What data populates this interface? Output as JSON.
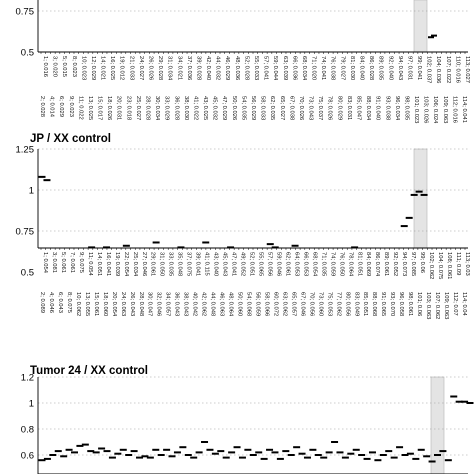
{
  "chart_data": [
    {
      "type": "scatter",
      "panel": "top",
      "title": "",
      "ylim": [
        0.5,
        0.9
      ],
      "yticks": [
        "0.75",
        "0.5"
      ],
      "xtick_labels_upper": [
        "1; 0.016",
        "3; 0.020",
        "5; 0.015",
        "8; 0.023",
        "10; 0.023",
        "12; 0.029",
        "14; 0.021",
        "16; 0.025",
        "19; 0.012",
        "21; 0.033",
        "24; 0.027",
        "26; 0.026",
        "29; 0.028",
        "31; 0.034",
        "34; 0.021",
        "37; 0.036",
        "39; 0.028",
        "42; 0.040",
        "44; 0.032",
        "46; 0.029",
        "48; 0.036",
        "52; 0.028",
        "55; 0.033",
        "57; 0.041",
        "59; 0.044",
        "63; 0.039",
        "66; 0.036",
        "68; 0.034",
        "71; 0.020",
        "74; 0.041",
        "76; 0.038",
        "79; 0.027",
        "81; 0.030",
        "84; 0.040",
        "86; 0.028",
        "89; 0.035",
        "92; 0.040",
        "94; 0.043",
        "97; 0.031",
        "99; 0.041",
        "102; 0.037",
        "104; 0.036",
        "107; 0.022",
        "110; 0.016",
        "113; 0.027"
      ],
      "xtick_labels_lower": [
        "2; 0.028",
        "4; 0.014",
        "6; 0.029",
        "9; 0.023",
        "11; 0.022",
        "13; 0.025",
        "15; 0.017",
        "18; 0.026",
        "20; 0.031",
        "23; 0.018",
        "25; 0.027",
        "28; 0.028",
        "30; 0.034",
        "33; 0.029",
        "36; 0.028",
        "38; 0.030",
        "41; 0.022",
        "43; 0.025",
        "45; 0.032",
        "47; 0.029",
        "50; 0.026",
        "54; 0.035",
        "56; 0.029",
        "58; 0.033",
        "62; 0.035",
        "65; 0.027",
        "67; 0.038",
        "70; 0.026",
        "73; 0.043",
        "75; 0.037",
        "78; 0.026",
        "80; 0.029",
        "83; 0.031",
        "85; 0.047",
        "88; 0.034",
        "91; 0.040",
        "93; 0.038",
        "96; 0.034",
        "98; 0.035",
        "101; 0.023",
        "103; 0.026",
        "106; 0.024",
        "109; 0.063",
        "112; 0.016",
        "114; 0.041"
      ],
      "series": [
        {
          "values": [
            0.59,
            0.6
          ]
        }
      ]
    },
    {
      "type": "scatter",
      "panel": "middle",
      "title": "JP / XX control",
      "ylim": [
        0.5,
        1.25
      ],
      "yticks": [
        "1.25",
        "1",
        "0.75",
        "0.5"
      ],
      "xtick_labels_upper": [
        "1; 0.054",
        "3; 0.081",
        "5; 0.061",
        "7; 0.061",
        "9; 0.075",
        "11; 0.054",
        "14; 0.051",
        "16; 0.041",
        "19; 0.039",
        "22; 0.054",
        "25; 0.034",
        "27; 0.046",
        "29; 0.061",
        "31; 0.050",
        "33; 0.035",
        "35; 0.048",
        "37; 0.075",
        "39; 0.041",
        "41; 0.115",
        "43; 0.040",
        "45; 0.043",
        "47; 0.041",
        "49; 0.052",
        "52; 0.051",
        "55; 0.065",
        "57; 0.056",
        "59; 0.046",
        "62; 0.061",
        "64; 0.053",
        "66; 0.053",
        "68; 0.054",
        "71; 0.035",
        "74; 0.059",
        "76; 0.050",
        "78; 0.064",
        "81; 0.051",
        "84; 0.069",
        "86; 0.074",
        "89; 0.061",
        "92; 0.052",
        "94; 0.073",
        "97; 0.085",
        "99; 0.06",
        "102; 0.062",
        "104; 0.075",
        "108; 0.061",
        "111; 0.09",
        "113; 0.03"
      ],
      "xtick_labels_lower": [
        "2; 0.089",
        "4; 0.046",
        "6; 0.043",
        "8; 0.075",
        "10; 0.062",
        "13; 0.055",
        "15; 0.061",
        "18; 0.060",
        "20; 0.054",
        "24; 0.063",
        "26; 0.043",
        "28; 0.048",
        "30; 0.047",
        "32; 0.046",
        "34; 0.057",
        "36; 0.043",
        "38; 0.043",
        "40; 0.042",
        "42; 0.062",
        "44; 0.048",
        "46; 0.063",
        "48; 0.064",
        "50; 0.060",
        "54; 0.068",
        "56; 0.059",
        "58; 0.066",
        "60; 0.072",
        "63; 0.062",
        "65; 0.057",
        "67; 0.046",
        "70; 0.056",
        "73; 0.060",
        "75; 0.053",
        "77; 0.062",
        "80; 0.056",
        "83; 0.049",
        "85; 0.051",
        "88; 0.068",
        "91; 0.065",
        "93; 0.070",
        "96; 0.058",
        "98; 0.061",
        "101; 0.06",
        "103; 0.063",
        "107; 0.062",
        "109; 0.063",
        "112; 0.07",
        "114; 0.04"
      ],
      "series": [
        {
          "values": [
            1.08,
            1.06,
            0.62,
            0.52,
            0.61,
            0.64,
            0.58,
            0.51,
            0.63,
            0.6,
            0.65,
            0.62,
            0.6,
            0.65,
            0.6,
            0.61,
            0.64,
            0.66,
            0.59,
            0.63,
            0.56,
            0.62,
            0.6,
            0.68,
            0.59,
            0.64,
            0.63,
            0.6,
            0.65,
            0.58,
            0.64,
            0.6,
            0.58,
            0.68,
            0.62,
            0.61,
            0.64,
            0.64,
            0.65,
            0.6,
            0.63,
            0.64,
            0.56,
            0.6,
            0.57,
            0.62,
            0.67,
            0.65,
            0.58,
            0.64,
            0.6,
            0.66,
            0.59,
            0.56,
            0.62,
            0.54,
            0.57,
            0.54,
            0.6,
            0.52,
            0.56,
            0.63,
            0.52,
            0.65,
            0.59,
            0.55,
            0.61,
            0.53,
            0.51,
            0.58,
            0.6,
            0.5,
            0.51,
            0.78,
            0.83,
            0.97,
            0.99,
            0.97,
            0.58,
            0.57
          ]
        }
      ]
    },
    {
      "type": "scatter",
      "panel": "bottom",
      "title": "Tumor 24 / XX control",
      "ylim": [
        0.5,
        1.2
      ],
      "yticks": [
        "1.2",
        "1",
        "0.8",
        "0.6"
      ],
      "series": [
        {
          "values": [
            0.56,
            0.57,
            0.6,
            0.63,
            0.59,
            0.64,
            0.62,
            0.67,
            0.68,
            0.63,
            0.62,
            0.65,
            0.63,
            0.58,
            0.61,
            0.64,
            0.6,
            0.63,
            0.58,
            0.59,
            0.58,
            0.64,
            0.6,
            0.64,
            0.59,
            0.62,
            0.66,
            0.6,
            0.58,
            0.62,
            0.7,
            0.64,
            0.61,
            0.63,
            0.58,
            0.62,
            0.66,
            0.58,
            0.64,
            0.6,
            0.62,
            0.57,
            0.64,
            0.62,
            0.57,
            0.63,
            0.6,
            0.66,
            0.61,
            0.58,
            0.64,
            0.6,
            0.58,
            0.62,
            0.7,
            0.62,
            0.58,
            0.61,
            0.64,
            0.6,
            0.57,
            0.62,
            0.56,
            0.6,
            0.63,
            0.58,
            0.66,
            0.6,
            0.61,
            0.57,
            0.64,
            0.59,
            0.55,
            0.6,
            0.63,
            0.56,
            1.05,
            1.01,
            1.01,
            1.0
          ]
        }
      ]
    }
  ]
}
